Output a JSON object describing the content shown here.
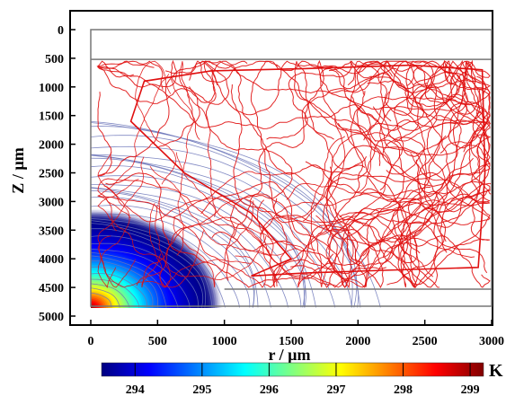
{
  "chart_data": {
    "type": "heatmap",
    "title": "",
    "xlabel": "r  /  µm",
    "ylabel": "Z  /  µm",
    "xlim": [
      0,
      3000
    ],
    "ylim": [
      0,
      5000
    ],
    "y_inverted": true,
    "x_ticks": [
      "0",
      "500",
      "1000",
      "1500",
      "2000",
      "2500",
      "3000"
    ],
    "y_ticks": [
      "0",
      "500",
      "1000",
      "1500",
      "2000",
      "2500",
      "3000",
      "3500",
      "4000",
      "4500",
      "5000"
    ],
    "domain_box": {
      "r": [
        0,
        3000
      ],
      "z": [
        0,
        4850
      ]
    },
    "free_surface_z": 520,
    "bottom_layer_z": 4530,
    "grid": false,
    "colorbar": {
      "unit": "K",
      "min": 293.5,
      "max": 299.2,
      "ticks": [
        "294",
        "295",
        "296",
        "297",
        "298",
        "299"
      ],
      "colors": [
        "#000080",
        "#0000ff",
        "#0080ff",
        "#00ffff",
        "#80ff80",
        "#ffff00",
        "#ff8000",
        "#ff0000",
        "#800000"
      ]
    },
    "temperature_field": {
      "hot_spot_center": {
        "r": 0,
        "z": 4850
      },
      "max_temperature": 299.2,
      "ambient_temperature": 293.5,
      "hot_region_extent": {
        "r": 1000,
        "z_top": 3100
      }
    },
    "series": [
      {
        "color": "#6b74b8",
        "style": "isotherm contour lines"
      },
      {
        "color": "#e01010",
        "style": "flow streamlines"
      }
    ]
  }
}
